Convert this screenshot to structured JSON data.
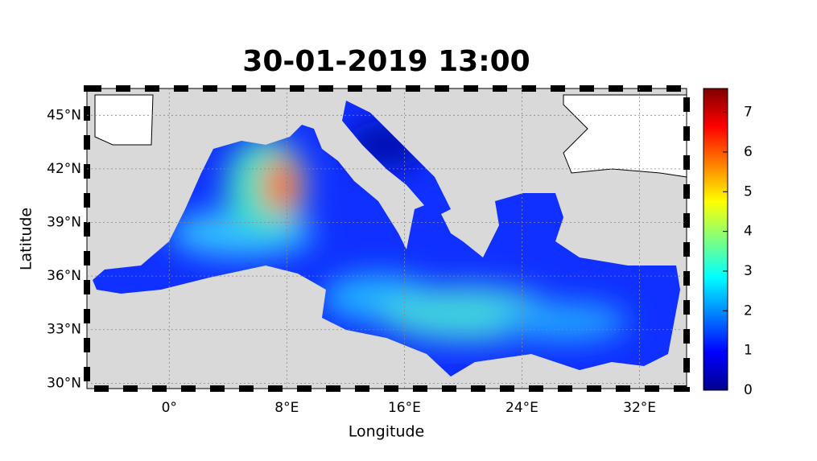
{
  "map": {
    "title": "30-01-2019 13:00",
    "xlabel": "Longitude",
    "ylabel": "Latitude",
    "xlim": [
      -5.6,
      35.2
    ],
    "ylim": [
      29.7,
      46.5
    ],
    "xticks": [
      {
        "value": 0,
        "label": "0°"
      },
      {
        "value": 8,
        "label": "8°E"
      },
      {
        "value": 16,
        "label": "16°E"
      },
      {
        "value": 24,
        "label": "24°E"
      },
      {
        "value": 32,
        "label": "32°E"
      }
    ],
    "yticks": [
      {
        "value": 30,
        "label": "30°N"
      },
      {
        "value": 33,
        "label": "33°N"
      },
      {
        "value": 36,
        "label": "36°N"
      },
      {
        "value": 39,
        "label": "39°N"
      },
      {
        "value": 42,
        "label": "42°N"
      },
      {
        "value": 45,
        "label": "45°N"
      }
    ],
    "grid": true
  },
  "colorbar": {
    "clim": [
      0,
      7.6
    ],
    "ticks": [
      0,
      1,
      2,
      3,
      4,
      5,
      6,
      7
    ]
  }
}
